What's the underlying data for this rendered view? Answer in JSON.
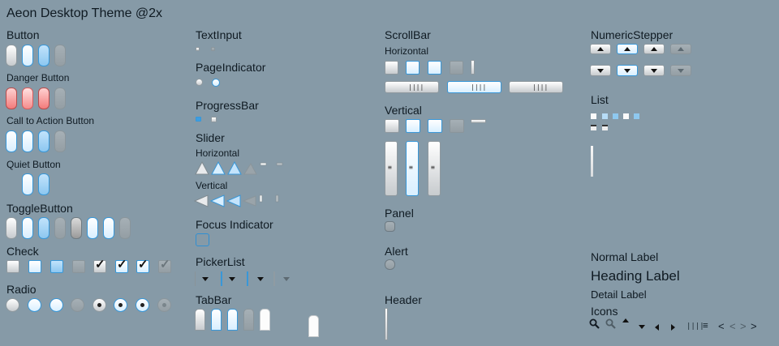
{
  "title": "Aeon Desktop Theme @2x",
  "sections": {
    "button": "Button",
    "danger_button": "Danger Button",
    "call_to_action_button": "Call to Action Button",
    "quiet_button": "Quiet Button",
    "toggle_button": "ToggleButton",
    "check": "Check",
    "radio": "Radio",
    "text_input": "TextInput",
    "page_indicator": "PageIndicator",
    "progress_bar": "ProgressBar",
    "slider": "Slider",
    "slider_horizontal": "Horizontal",
    "slider_vertical": "Vertical",
    "focus_indicator": "Focus Indicator",
    "picker_list": "PickerList",
    "tab_bar": "TabBar",
    "scroll_bar": "ScrollBar",
    "scroll_horizontal": "Horizontal",
    "scroll_vertical": "Vertical",
    "panel": "Panel",
    "alert": "Alert",
    "header": "Header",
    "numeric_stepper": "NumericStepper",
    "list": "List",
    "normal_label": "Normal Label",
    "heading_label": "Heading Label",
    "detail_label": "Detail Label",
    "icons": "Icons"
  },
  "icons": [
    "search-icon",
    "search-disabled-icon",
    "caret-up-icon",
    "caret-down-icon",
    "caret-left-icon",
    "caret-right-icon",
    "vertical-grip-icon",
    "horizontal-grip-icon",
    "back-icon",
    "back-disabled-icon",
    "forward-disabled-icon",
    "forward-icon"
  ],
  "colors": {
    "background": "#869aa7",
    "accent": "#3897d8",
    "danger": "#f37b7b"
  }
}
